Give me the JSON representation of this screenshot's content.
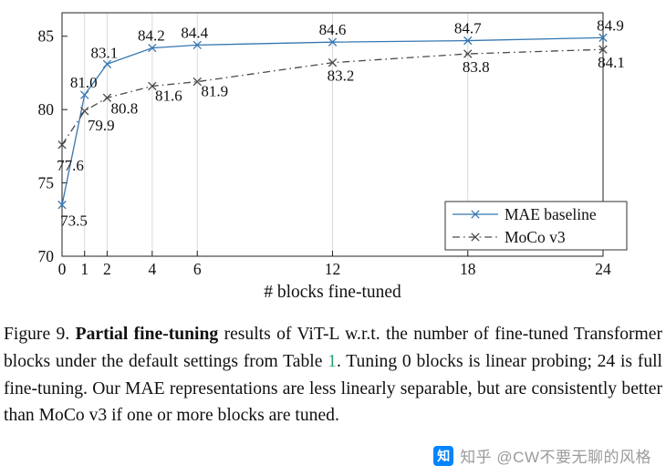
{
  "chart_data": {
    "type": "line",
    "title": "",
    "xlabel": "# blocks fine-tuned",
    "ylabel": "",
    "x": [
      0,
      1,
      2,
      4,
      6,
      12,
      18,
      24
    ],
    "xticks": [
      0,
      1,
      2,
      4,
      6,
      12,
      18,
      24
    ],
    "yticks": [
      70,
      75,
      80,
      85
    ],
    "xlim": [
      0,
      24
    ],
    "ylim": [
      70,
      86.6
    ],
    "grid": "vertical",
    "legend_position": "lower right",
    "series": [
      {
        "name": "MAE baseline",
        "values": [
          73.5,
          81.0,
          83.1,
          84.2,
          84.4,
          84.6,
          84.7,
          84.9
        ],
        "labels": [
          "73.5",
          "81.0",
          "83.1",
          "84.2",
          "84.4",
          "84.6",
          "84.7",
          "84.9"
        ],
        "color": "#3577b1",
        "label_color": "#3577b1",
        "style": "solid",
        "marker": "x",
        "label_offsets": [
          [
            13,
            18
          ],
          [
            -1,
            -13
          ],
          [
            -3,
            -12
          ],
          [
            -1,
            -13
          ],
          [
            -3,
            -13
          ],
          [
            0,
            -13
          ],
          [
            0,
            -13
          ],
          [
            8,
            -13
          ]
        ]
      },
      {
        "name": "MoCo v3",
        "values": [
          77.6,
          79.9,
          80.8,
          81.6,
          81.9,
          83.2,
          83.8,
          84.1
        ],
        "labels": [
          "77.6",
          "79.9",
          "80.8",
          "81.6",
          "81.9",
          "83.2",
          "83.8",
          "84.1"
        ],
        "color": "#4a4a4a",
        "label_color": "#333333",
        "style": "dashdot",
        "marker": "x",
        "label_offsets": [
          [
            9,
            23
          ],
          [
            18,
            16
          ],
          [
            19,
            12
          ],
          [
            18,
            11
          ],
          [
            19,
            11
          ],
          [
            9,
            15
          ],
          [
            9,
            15
          ],
          [
            9,
            15
          ]
        ]
      }
    ],
    "colors": {
      "grid": "#d9d9d9",
      "axis": "#222222",
      "legend_border": "#333333"
    }
  },
  "caption": {
    "segments": {
      "prefix": "Figure 9. ",
      "bold": "Partial fine-tuning",
      "mid": " results of ViT-L w.r.t. the number of fine-tuned Transformer blocks under the default settings from Table ",
      "link": "1",
      "rest": ". Tuning 0 blocks is linear probing; 24 is full fine-tuning. Our MAE representations are less linearly separable, but are consistently better than MoCo v3 if one or more blocks are tuned."
    },
    "link_color": "#28a06e"
  },
  "watermark": {
    "logo_char": "知",
    "text": "知乎 @CW不要无聊的风格",
    "brand_color": "#0084ff"
  }
}
